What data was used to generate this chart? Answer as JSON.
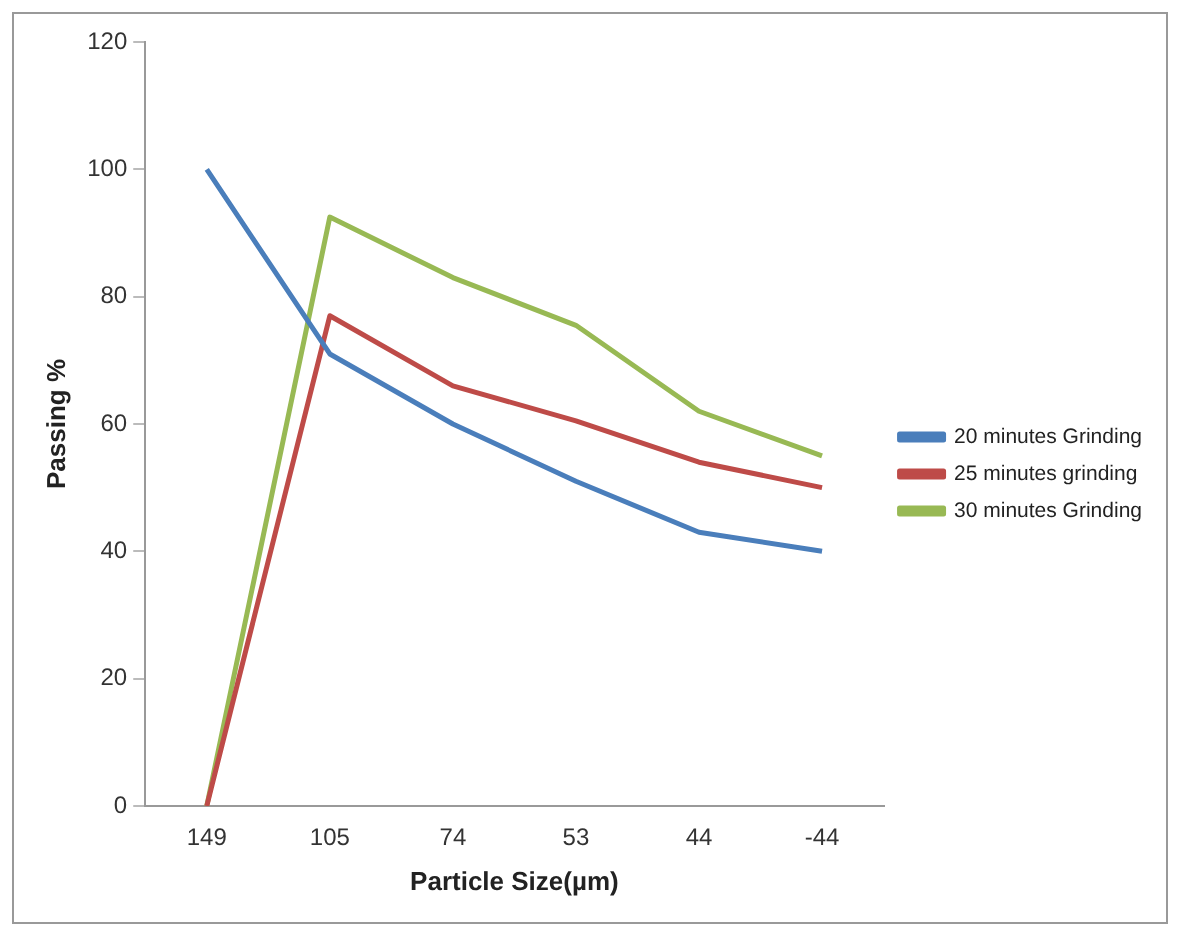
{
  "chart_data": {
    "type": "line",
    "xlabel": "Particle Size(µm)",
    "ylabel": "Passing %",
    "categories": [
      "149",
      "105",
      "74",
      "53",
      "44",
      "-44"
    ],
    "series": [
      {
        "name": "20 minutes Grinding",
        "color": "#4a7ebb",
        "values": [
          100,
          71,
          60,
          51,
          43,
          40
        ]
      },
      {
        "name": "25 minutes grinding",
        "color": "#be4b48",
        "values": [
          0,
          77,
          66,
          60.5,
          54,
          50
        ]
      },
      {
        "name": "30 minutes Grinding",
        "color": "#98b954",
        "values": [
          0,
          92.5,
          83,
          75.5,
          62,
          55
        ]
      }
    ],
    "ylim": [
      0,
      120
    ],
    "yticks": [
      0,
      20,
      40,
      60,
      80,
      100,
      120
    ],
    "grid": false,
    "legend": "right",
    "marker": "none",
    "line_style": "solid"
  }
}
